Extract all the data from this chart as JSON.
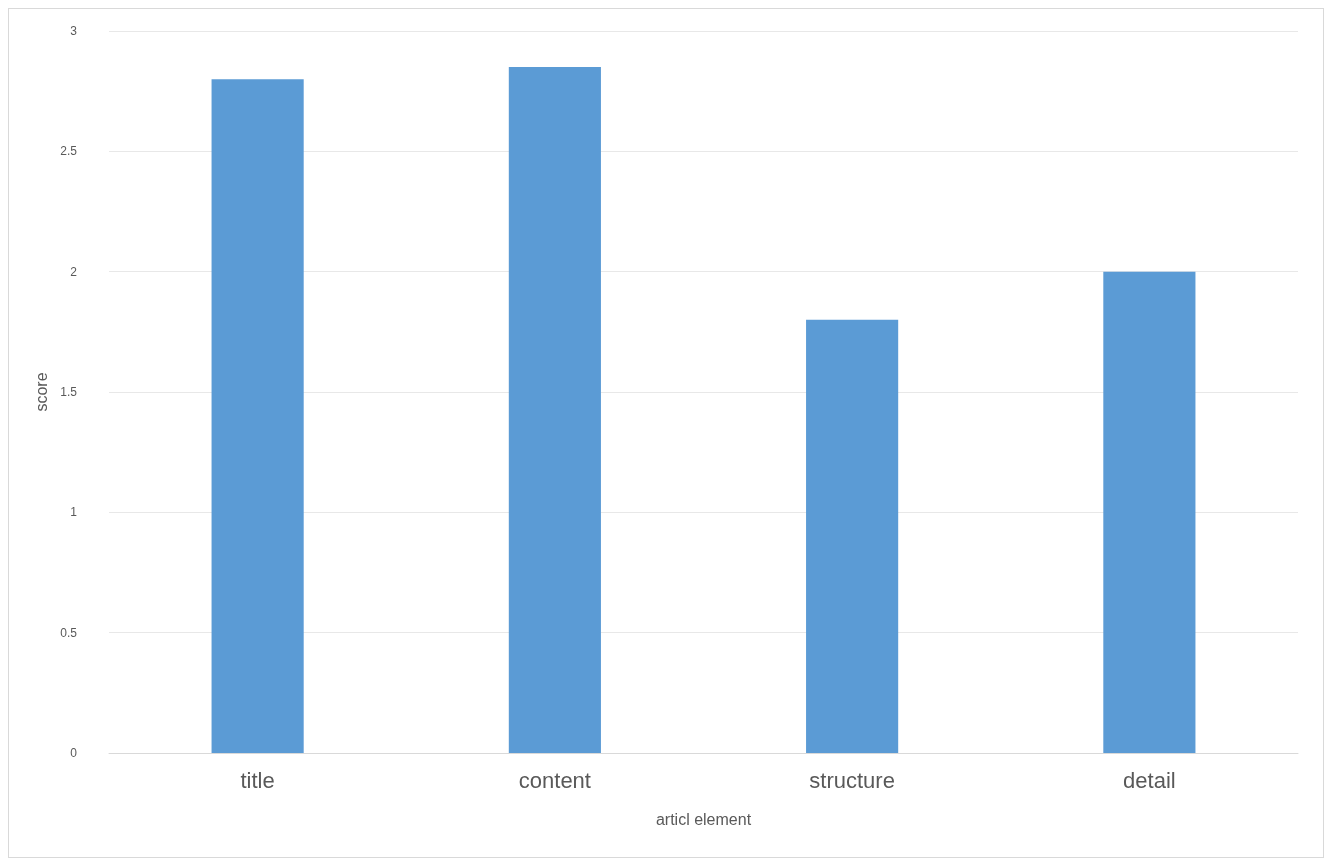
{
  "chart_data": {
    "type": "bar",
    "xlabel": "articl element",
    "ylabel": "score",
    "categories": [
      "title",
      "content",
      "structure",
      "detail"
    ],
    "values": [
      2.8,
      2.85,
      1.8,
      2.0
    ],
    "color": "#5b9bd5",
    "ylim": [
      0,
      3
    ],
    "yticks": [
      0,
      0.5,
      1,
      1.5,
      2,
      2.5,
      3
    ],
    "grid": "y"
  }
}
